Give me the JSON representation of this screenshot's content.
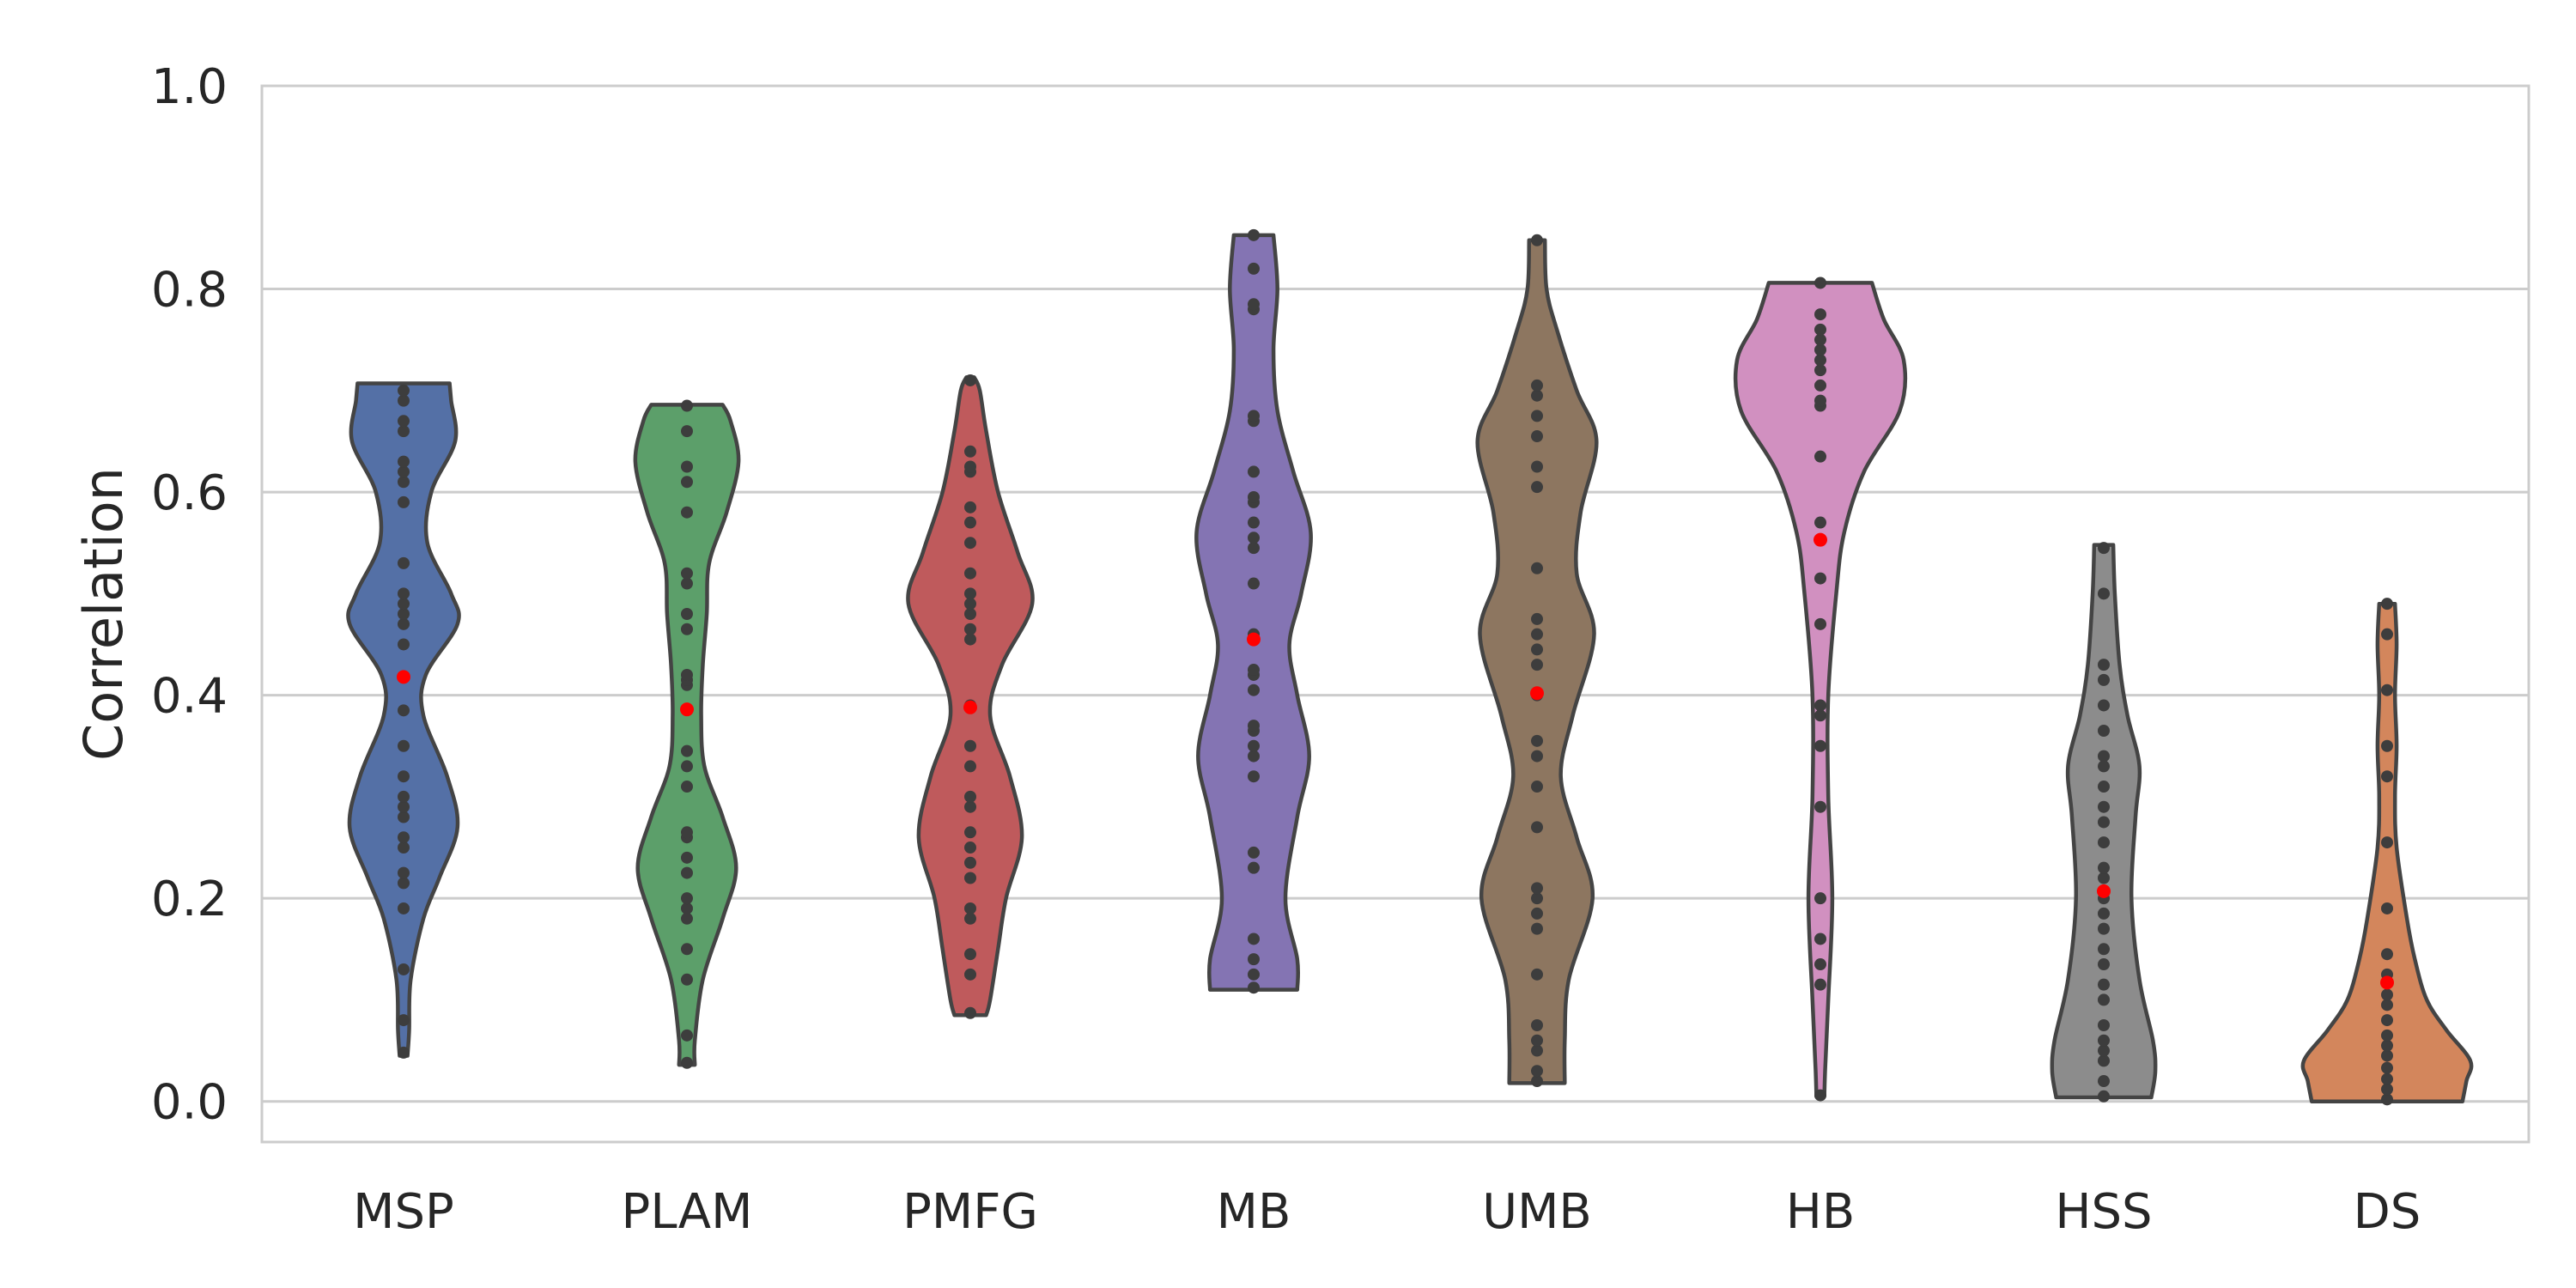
{
  "chart_data": {
    "type": "violin",
    "ylabel": "Correlation",
    "xlabel": "",
    "ylim": [
      -0.04,
      1.0
    ],
    "yticks": [
      "0.0",
      "0.2",
      "0.4",
      "0.6",
      "0.8",
      "1.0"
    ],
    "grid": "y",
    "categories": [
      "MSP",
      "PLAM",
      "PMFG",
      "MB",
      "UMB",
      "HB",
      "HSS",
      "DS"
    ],
    "violin_color": "#444444",
    "point_color": "#3d3d3d",
    "median_color": "#ff0000",
    "series": [
      {
        "category": "MSP",
        "color": "#5470a6",
        "min": 0.045,
        "max": 0.707,
        "median": 0.418,
        "density": [
          [
            0.045,
            0.05
          ],
          [
            0.07,
            0.07
          ],
          [
            0.12,
            0.09
          ],
          [
            0.18,
            0.25
          ],
          [
            0.22,
            0.45
          ],
          [
            0.27,
            0.68
          ],
          [
            0.32,
            0.55
          ],
          [
            0.38,
            0.25
          ],
          [
            0.42,
            0.28
          ],
          [
            0.47,
            0.68
          ],
          [
            0.5,
            0.6
          ],
          [
            0.55,
            0.3
          ],
          [
            0.6,
            0.35
          ],
          [
            0.65,
            0.65
          ],
          [
            0.69,
            0.6
          ],
          [
            0.707,
            0.58
          ]
        ],
        "points": [
          0.048,
          0.08,
          0.13,
          0.19,
          0.215,
          0.225,
          0.25,
          0.26,
          0.28,
          0.29,
          0.3,
          0.32,
          0.35,
          0.385,
          0.45,
          0.47,
          0.48,
          0.49,
          0.5,
          0.53,
          0.59,
          0.61,
          0.62,
          0.63,
          0.66,
          0.67,
          0.69,
          0.7
        ]
      },
      {
        "category": "PLAM",
        "color": "#5c9f6a",
        "min": 0.036,
        "max": 0.686,
        "median": 0.386,
        "density": [
          [
            0.036,
            0.1
          ],
          [
            0.06,
            0.1
          ],
          [
            0.12,
            0.2
          ],
          [
            0.18,
            0.45
          ],
          [
            0.23,
            0.62
          ],
          [
            0.28,
            0.45
          ],
          [
            0.33,
            0.22
          ],
          [
            0.38,
            0.18
          ],
          [
            0.43,
            0.2
          ],
          [
            0.48,
            0.25
          ],
          [
            0.53,
            0.28
          ],
          [
            0.58,
            0.5
          ],
          [
            0.63,
            0.65
          ],
          [
            0.67,
            0.55
          ],
          [
            0.686,
            0.45
          ]
        ],
        "points": [
          0.038,
          0.065,
          0.12,
          0.15,
          0.18,
          0.19,
          0.2,
          0.225,
          0.24,
          0.26,
          0.265,
          0.31,
          0.33,
          0.345,
          0.41,
          0.415,
          0.42,
          0.465,
          0.48,
          0.51,
          0.52,
          0.58,
          0.61,
          0.625,
          0.66,
          0.685
        ]
      },
      {
        "category": "PMFG",
        "color": "#bf5a5c",
        "min": 0.085,
        "max": 0.713,
        "median": 0.388,
        "density": [
          [
            0.085,
            0.2
          ],
          [
            0.1,
            0.25
          ],
          [
            0.15,
            0.35
          ],
          [
            0.2,
            0.45
          ],
          [
            0.26,
            0.65
          ],
          [
            0.32,
            0.5
          ],
          [
            0.38,
            0.25
          ],
          [
            0.43,
            0.4
          ],
          [
            0.49,
            0.78
          ],
          [
            0.54,
            0.6
          ],
          [
            0.6,
            0.35
          ],
          [
            0.66,
            0.2
          ],
          [
            0.7,
            0.12
          ],
          [
            0.713,
            0.05
          ]
        ],
        "points": [
          0.087,
          0.125,
          0.145,
          0.18,
          0.19,
          0.22,
          0.235,
          0.25,
          0.265,
          0.29,
          0.3,
          0.33,
          0.35,
          0.39,
          0.455,
          0.465,
          0.48,
          0.49,
          0.5,
          0.52,
          0.55,
          0.57,
          0.585,
          0.62,
          0.625,
          0.64,
          0.71
        ]
      },
      {
        "category": "MB",
        "color": "#8474b3",
        "min": 0.11,
        "max": 0.853,
        "median": 0.455,
        "density": [
          [
            0.11,
            0.55
          ],
          [
            0.14,
            0.55
          ],
          [
            0.2,
            0.4
          ],
          [
            0.28,
            0.55
          ],
          [
            0.34,
            0.7
          ],
          [
            0.4,
            0.55
          ],
          [
            0.45,
            0.45
          ],
          [
            0.5,
            0.6
          ],
          [
            0.56,
            0.72
          ],
          [
            0.62,
            0.5
          ],
          [
            0.68,
            0.3
          ],
          [
            0.74,
            0.25
          ],
          [
            0.8,
            0.3
          ],
          [
            0.853,
            0.25
          ]
        ],
        "points": [
          0.112,
          0.125,
          0.14,
          0.16,
          0.23,
          0.245,
          0.32,
          0.34,
          0.35,
          0.365,
          0.37,
          0.405,
          0.42,
          0.425,
          0.46,
          0.51,
          0.545,
          0.555,
          0.57,
          0.59,
          0.595,
          0.62,
          0.67,
          0.675,
          0.78,
          0.785,
          0.82,
          0.853
        ]
      },
      {
        "category": "UMB",
        "color": "#8d7660",
        "min": 0.018,
        "max": 0.848,
        "median": 0.402,
        "density": [
          [
            0.018,
            0.35
          ],
          [
            0.06,
            0.35
          ],
          [
            0.12,
            0.4
          ],
          [
            0.2,
            0.7
          ],
          [
            0.26,
            0.5
          ],
          [
            0.32,
            0.3
          ],
          [
            0.38,
            0.45
          ],
          [
            0.46,
            0.72
          ],
          [
            0.52,
            0.5
          ],
          [
            0.58,
            0.55
          ],
          [
            0.65,
            0.75
          ],
          [
            0.7,
            0.5
          ],
          [
            0.76,
            0.25
          ],
          [
            0.8,
            0.12
          ],
          [
            0.848,
            0.1
          ]
        ],
        "points": [
          0.02,
          0.03,
          0.05,
          0.06,
          0.075,
          0.125,
          0.17,
          0.185,
          0.2,
          0.21,
          0.27,
          0.31,
          0.34,
          0.355,
          0.4,
          0.43,
          0.445,
          0.46,
          0.475,
          0.525,
          0.605,
          0.625,
          0.655,
          0.675,
          0.695,
          0.705,
          0.848
        ]
      },
      {
        "category": "HB",
        "color": "#d190c0",
        "min": 0.005,
        "max": 0.806,
        "median": 0.553,
        "density": [
          [
            0.005,
            0.05
          ],
          [
            0.03,
            0.06
          ],
          [
            0.1,
            0.1
          ],
          [
            0.2,
            0.15
          ],
          [
            0.3,
            0.1
          ],
          [
            0.4,
            0.1
          ],
          [
            0.5,
            0.2
          ],
          [
            0.56,
            0.3
          ],
          [
            0.62,
            0.55
          ],
          [
            0.68,
            1.0
          ],
          [
            0.73,
            1.05
          ],
          [
            0.77,
            0.8
          ],
          [
            0.806,
            0.65
          ]
        ],
        "points": [
          0.006,
          0.115,
          0.135,
          0.16,
          0.2,
          0.29,
          0.35,
          0.38,
          0.39,
          0.47,
          0.515,
          0.57,
          0.635,
          0.685,
          0.69,
          0.705,
          0.72,
          0.73,
          0.74,
          0.75,
          0.76,
          0.775,
          0.806
        ]
      },
      {
        "category": "HSS",
        "color": "#8c8c8c",
        "min": 0.004,
        "max": 0.548,
        "median": 0.207,
        "density": [
          [
            0.004,
            0.6
          ],
          [
            0.03,
            0.65
          ],
          [
            0.06,
            0.62
          ],
          [
            0.12,
            0.45
          ],
          [
            0.2,
            0.35
          ],
          [
            0.28,
            0.4
          ],
          [
            0.33,
            0.45
          ],
          [
            0.38,
            0.3
          ],
          [
            0.43,
            0.2
          ],
          [
            0.5,
            0.14
          ],
          [
            0.548,
            0.12
          ]
        ],
        "points": [
          0.005,
          0.02,
          0.04,
          0.05,
          0.06,
          0.075,
          0.1,
          0.115,
          0.135,
          0.15,
          0.17,
          0.185,
          0.2,
          0.22,
          0.23,
          0.255,
          0.275,
          0.29,
          0.31,
          0.33,
          0.34,
          0.365,
          0.39,
          0.415,
          0.43,
          0.5,
          0.545
        ]
      },
      {
        "category": "DS",
        "color": "#d3865c",
        "min": 0.0,
        "max": 0.49,
        "median": 0.117,
        "density": [
          [
            0.0,
            0.95
          ],
          [
            0.02,
            1.0
          ],
          [
            0.04,
            1.05
          ],
          [
            0.07,
            0.75
          ],
          [
            0.1,
            0.5
          ],
          [
            0.14,
            0.35
          ],
          [
            0.18,
            0.25
          ],
          [
            0.25,
            0.12
          ],
          [
            0.3,
            0.1
          ],
          [
            0.35,
            0.12
          ],
          [
            0.4,
            0.1
          ],
          [
            0.45,
            0.12
          ],
          [
            0.49,
            0.1
          ]
        ],
        "points": [
          0.002,
          0.012,
          0.022,
          0.033,
          0.045,
          0.055,
          0.065,
          0.08,
          0.095,
          0.105,
          0.125,
          0.145,
          0.19,
          0.255,
          0.32,
          0.35,
          0.405,
          0.46,
          0.49
        ]
      }
    ]
  }
}
